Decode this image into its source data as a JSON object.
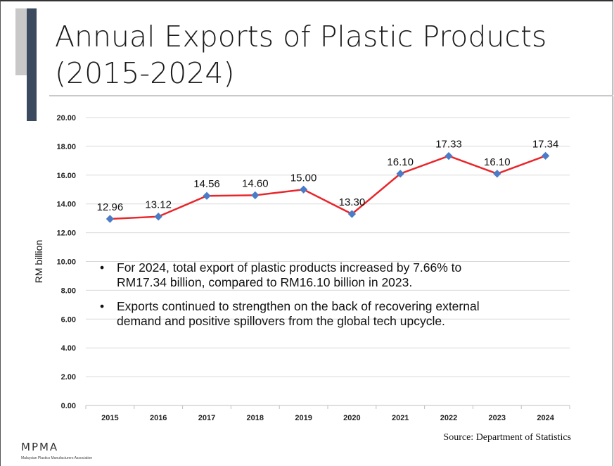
{
  "slide": {
    "title_line1": "Annual Exports of Plastic Products",
    "title_line2": "(2015-2024)",
    "source": "Source: Department of Statistics",
    "logo_text": "MPMA",
    "logo_subtext": "Malaysian Plastics Manufacturers Association"
  },
  "bullets": [
    {
      "line1": "For 2024, total export of plastic products increased by 7.66% to",
      "line2": "RM17.34 billion, compared to RM16.10 billion in 2023."
    },
    {
      "line1": "Exports continued to strengthen on the back of recovering external",
      "line2": "demand and positive spillovers from the global tech upcycle."
    }
  ],
  "chart_data": {
    "type": "line",
    "ylabel": "RM billion",
    "ylim": [
      0,
      20
    ],
    "yticks": [
      "0.00",
      "2.00",
      "4.00",
      "6.00",
      "8.00",
      "10.00",
      "12.00",
      "14.00",
      "16.00",
      "18.00",
      "20.00"
    ],
    "categories": [
      "2015",
      "2016",
      "2017",
      "2018",
      "2019",
      "2020",
      "2021",
      "2022",
      "2023",
      "2024"
    ],
    "values": [
      12.96,
      13.12,
      14.56,
      14.6,
      15.0,
      13.3,
      16.1,
      17.33,
      16.1,
      17.34
    ],
    "data_labels": [
      "12.96",
      "13.12",
      "14.56",
      "14.60",
      "15.00",
      "13.30",
      "16.10",
      "17.33",
      "16.10",
      "17.34"
    ],
    "grid": true,
    "line_color": "#e8262a",
    "marker_color": "#4a7cc7"
  }
}
